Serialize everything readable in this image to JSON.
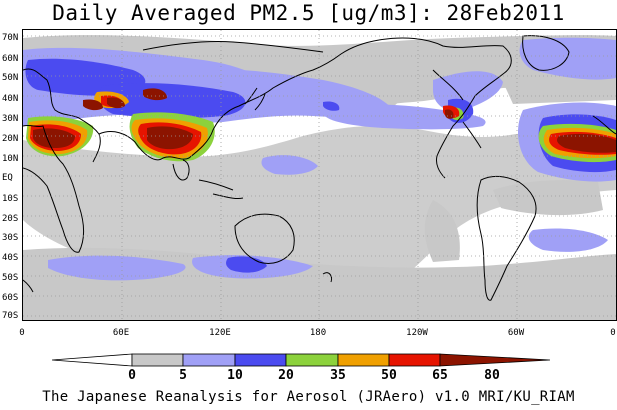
{
  "title": "Daily Averaged PM2.5 [ug/m3]: 28Feb2011",
  "credit": "The Japanese Reanalysis for Aerosol (JRAero) v1.0 MRI/KU_RIAM",
  "lat_labels": [
    "70N",
    "60N",
    "50N",
    "40N",
    "30N",
    "20N",
    "10N",
    "EQ",
    "10S",
    "20S",
    "30S",
    "40S",
    "50S",
    "60S",
    "70S"
  ],
  "lon_labels": [
    "0",
    "60E",
    "120E",
    "180",
    "120W",
    "60W",
    "0"
  ],
  "colorbar": {
    "bins": [
      {
        "color": "#ffffff"
      },
      {
        "color": "#c8c8c8"
      },
      {
        "color": "#a0a0f6"
      },
      {
        "color": "#4b4bf0"
      },
      {
        "color": "#8cd23c"
      },
      {
        "color": "#f0a000"
      },
      {
        "color": "#e61400"
      },
      {
        "color": "#8c1400"
      }
    ],
    "labels": [
      "0",
      "5",
      "10",
      "20",
      "35",
      "50",
      "65",
      "80"
    ]
  },
  "colors": {
    "very_low": "#c8c8c8",
    "low": "#a0a0f6",
    "moderate": "#4b4bf0",
    "elevated": "#8cd23c",
    "high": "#f0a000",
    "very_high": "#e61400",
    "extreme": "#8c1400",
    "coast": "#000000",
    "grid": "#9a9a9a"
  }
}
